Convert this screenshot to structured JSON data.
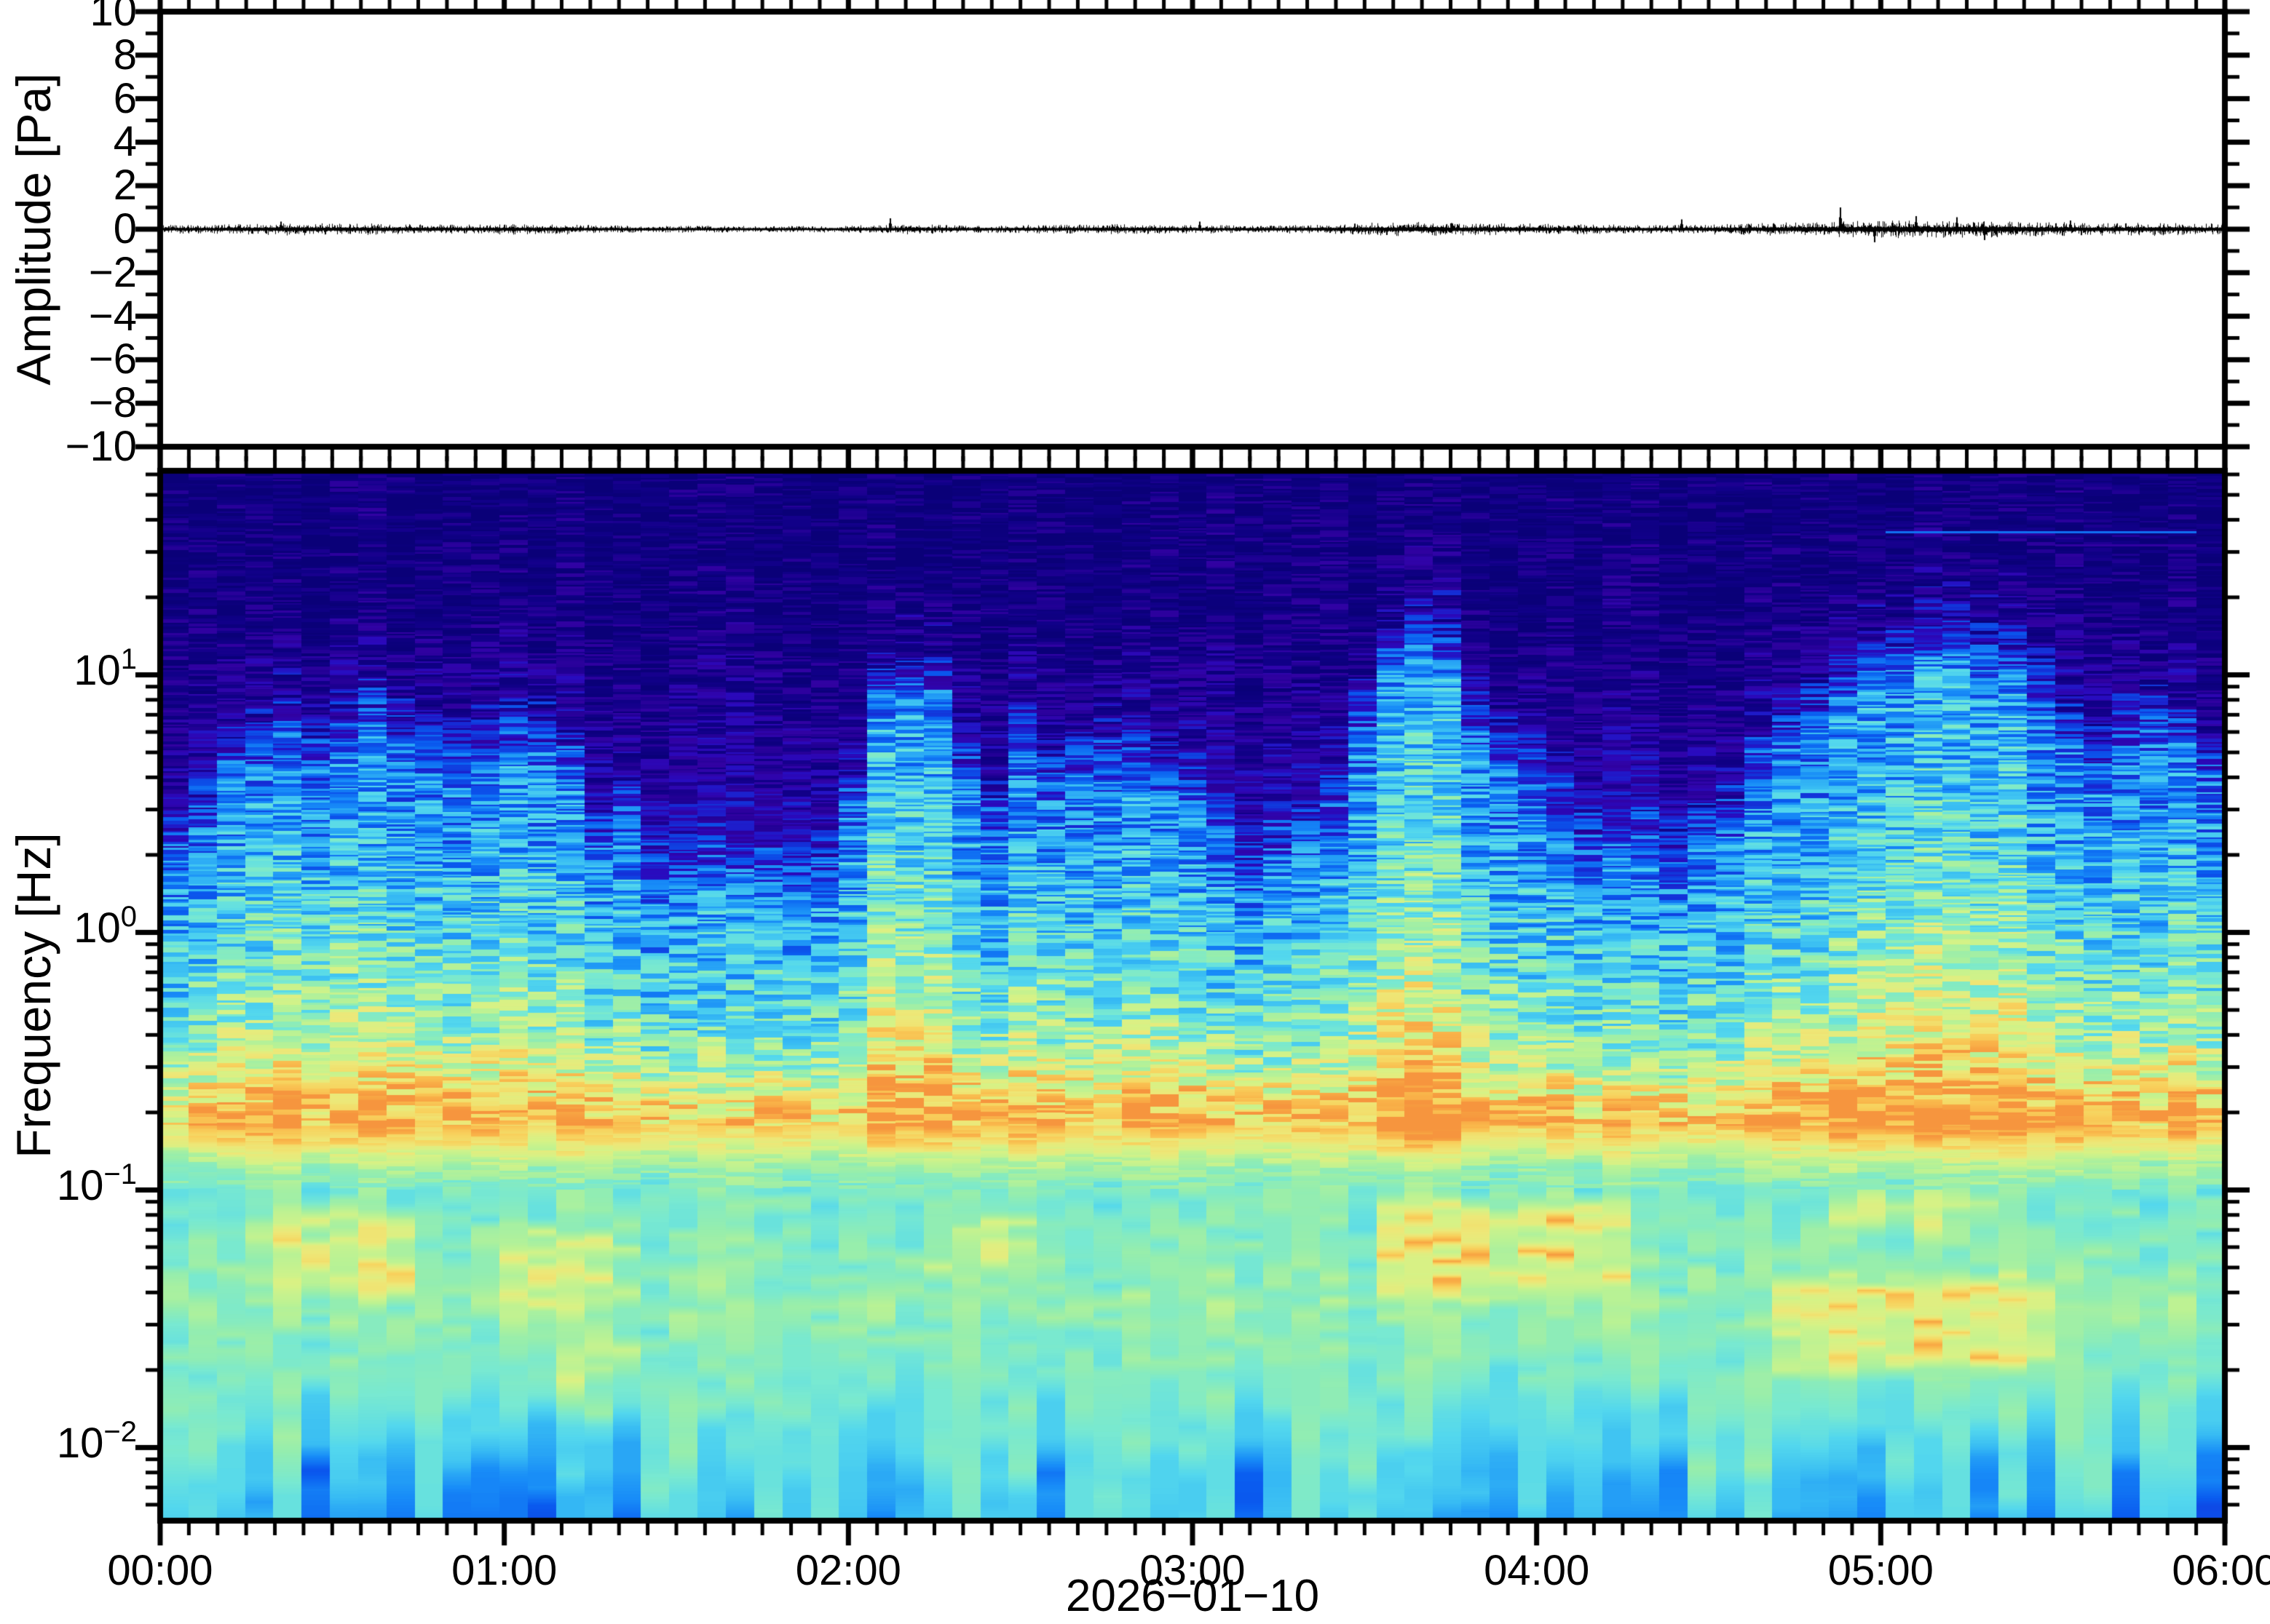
{
  "figure": {
    "background": "#ffffff",
    "frame_color": "#000000"
  },
  "chart_data": [
    {
      "type": "line",
      "name": "infrasound-waveform",
      "ylabel": "Amplitude [Pa]",
      "line_color": "#000000",
      "x_range_hours": [
        0,
        6
      ],
      "ylim": [
        -10,
        10
      ],
      "y_minor_step": 1,
      "x_minor_step_minutes": 5,
      "y_ticks": [
        {
          "v": 10,
          "label": "10"
        },
        {
          "v": 8,
          "label": "8"
        },
        {
          "v": 6,
          "label": "6"
        },
        {
          "v": 4,
          "label": "4"
        },
        {
          "v": 2,
          "label": "2"
        },
        {
          "v": 0,
          "label": "0"
        },
        {
          "v": -2,
          "label": "−2"
        },
        {
          "v": -4,
          "label": "−4"
        },
        {
          "v": -6,
          "label": "−6"
        },
        {
          "v": -8,
          "label": "−8"
        },
        {
          "v": -10,
          "label": "−10"
        }
      ],
      "noise_sigma_pa_per_5min": [
        0.08,
        0.08,
        0.09,
        0.1,
        0.12,
        0.11,
        0.1,
        0.1,
        0.09,
        0.09,
        0.08,
        0.09,
        0.1,
        0.1,
        0.09,
        0.07,
        0.07,
        0.06,
        0.06,
        0.06,
        0.06,
        0.06,
        0.06,
        0.06,
        0.07,
        0.08,
        0.09,
        0.08,
        0.07,
        0.07,
        0.08,
        0.08,
        0.08,
        0.09,
        0.09,
        0.08,
        0.08,
        0.07,
        0.07,
        0.07,
        0.08,
        0.09,
        0.11,
        0.12,
        0.13,
        0.12,
        0.11,
        0.11,
        0.1,
        0.09,
        0.09,
        0.08,
        0.08,
        0.08,
        0.09,
        0.1,
        0.11,
        0.12,
        0.13,
        0.14,
        0.15,
        0.16,
        0.16,
        0.15,
        0.15,
        0.14,
        0.13,
        0.12,
        0.11,
        0.11,
        0.12,
        0.11,
        0.1
      ],
      "spikes": [
        {
          "t_hours": 0.35,
          "amp_pa": 0.35
        },
        {
          "t_hours": 2.12,
          "amp_pa": 0.5
        },
        {
          "t_hours": 3.02,
          "amp_pa": 0.35
        },
        {
          "t_hours": 4.42,
          "amp_pa": 0.45
        },
        {
          "t_hours": 4.88,
          "amp_pa": 1.0
        },
        {
          "t_hours": 4.98,
          "amp_pa": -0.6
        },
        {
          "t_hours": 5.1,
          "amp_pa": 0.6
        },
        {
          "t_hours": 5.22,
          "amp_pa": 0.55
        },
        {
          "t_hours": 5.3,
          "amp_pa": -0.5
        },
        {
          "t_hours": 5.55,
          "amp_pa": 0.4
        }
      ]
    },
    {
      "type": "heatmap",
      "name": "spectrogram",
      "ylabel": "Frequency [Hz]",
      "xlabel": "2026−01−10",
      "x_range_hours": [
        0,
        6
      ],
      "freq_range_hz": [
        0.0052,
        62
      ],
      "time_bin_minutes": 5,
      "grid": "off",
      "x_ticks": [
        {
          "hours": 0,
          "label": "00:00"
        },
        {
          "hours": 1,
          "label": "01:00"
        },
        {
          "hours": 2,
          "label": "02:00"
        },
        {
          "hours": 3,
          "label": "03:00"
        },
        {
          "hours": 4,
          "label": "04:00"
        },
        {
          "hours": 5,
          "label": "05:00"
        },
        {
          "hours": 6,
          "label": "06:00"
        }
      ],
      "freq_ticks": [
        {
          "hz": 10,
          "base": "10",
          "exp": "1"
        },
        {
          "hz": 1,
          "base": "10",
          "exp": "0"
        },
        {
          "hz": 0.1,
          "base": "10",
          "exp": "−1"
        },
        {
          "hz": 0.01,
          "base": "10",
          "exp": "−2"
        }
      ],
      "colormap": [
        [
          0.0,
          "#0A0078"
        ],
        [
          0.08,
          "#12008A"
        ],
        [
          0.15,
          "#3202A2"
        ],
        [
          0.2,
          "#2A0ABE"
        ],
        [
          0.26,
          "#1430D8"
        ],
        [
          0.33,
          "#0A5CF0"
        ],
        [
          0.4,
          "#188CF8"
        ],
        [
          0.47,
          "#38BCF4"
        ],
        [
          0.54,
          "#54D8EE"
        ],
        [
          0.6,
          "#78E9D2"
        ],
        [
          0.66,
          "#96EEAE"
        ],
        [
          0.72,
          "#B8F296"
        ],
        [
          0.78,
          "#D8F286"
        ],
        [
          0.84,
          "#EEE878"
        ],
        [
          0.9,
          "#F8D35E"
        ],
        [
          0.95,
          "#FAB54A"
        ],
        [
          1.0,
          "#F6953E"
        ]
      ],
      "background_level_vs_log10hz": [
        [
          1.7924,
          0.04
        ],
        [
          1.3,
          0.05
        ],
        [
          1.0,
          0.08
        ],
        [
          0.6,
          0.13
        ],
        [
          0.3,
          0.2
        ],
        [
          0.0,
          0.3
        ],
        [
          -0.3,
          0.4
        ],
        [
          -0.55,
          0.52
        ],
        [
          -0.73,
          0.68
        ],
        [
          -0.9,
          0.6
        ],
        [
          -1.2,
          0.63
        ],
        [
          -1.45,
          0.66
        ],
        [
          -1.7,
          0.62
        ],
        [
          -1.95,
          0.56
        ],
        [
          -2.1,
          0.5
        ],
        [
          -2.284,
          0.46
        ]
      ],
      "burst_ceiling_hz_per_5min": [
        4,
        5,
        8,
        9,
        10,
        9,
        10,
        12,
        10,
        9,
        8,
        9,
        10,
        10,
        8,
        4,
        5,
        3,
        2.5,
        3,
        2.5,
        3,
        2.5,
        3,
        6,
        14,
        16,
        15,
        8,
        5,
        9,
        7,
        8,
        9,
        8,
        7,
        6,
        4,
        3,
        3.5,
        4,
        5,
        12,
        20,
        22,
        20,
        12,
        9,
        8,
        5,
        4,
        3.5,
        4,
        3.5,
        4,
        5,
        8,
        10,
        12,
        15,
        18,
        20,
        22,
        22,
        20,
        18,
        15,
        10,
        8,
        10,
        12,
        10,
        8
      ],
      "burst_strength_per_5min": [
        0.5,
        0.6,
        0.75,
        0.8,
        0.85,
        0.8,
        0.85,
        0.8,
        0.8,
        0.75,
        0.7,
        0.75,
        0.8,
        0.8,
        0.7,
        0.55,
        0.6,
        0.45,
        0.4,
        0.45,
        0.45,
        0.5,
        0.45,
        0.5,
        0.65,
        0.9,
        0.95,
        0.9,
        0.7,
        0.6,
        0.75,
        0.7,
        0.7,
        0.75,
        0.75,
        0.7,
        0.65,
        0.5,
        0.45,
        0.5,
        0.55,
        0.6,
        0.85,
        0.95,
        1.0,
        0.95,
        0.8,
        0.75,
        0.7,
        0.6,
        0.55,
        0.5,
        0.5,
        0.5,
        0.55,
        0.6,
        0.7,
        0.75,
        0.8,
        0.85,
        0.9,
        0.95,
        0.95,
        0.95,
        0.9,
        0.9,
        0.85,
        0.75,
        0.7,
        0.75,
        0.8,
        0.8,
        0.75
      ],
      "microbarom_band": {
        "center_hz": 0.186,
        "sigma_decades": 0.12,
        "amp": 0.14
      },
      "hot_patches": [
        {
          "t_hours": [
            0.25,
            0.8
          ],
          "freq_hz": [
            0.035,
            0.09
          ],
          "amp": 0.16
        },
        {
          "t_hours": [
            0.95,
            1.4
          ],
          "freq_hz": [
            0.03,
            0.08
          ],
          "amp": 0.14
        },
        {
          "t_hours": [
            2.2,
            2.6
          ],
          "freq_hz": [
            0.04,
            0.1
          ],
          "amp": 0.1
        },
        {
          "t_hours": [
            3.55,
            4.35
          ],
          "freq_hz": [
            0.035,
            0.1
          ],
          "amp": 0.22
        },
        {
          "t_hours": [
            4.75,
            5.6
          ],
          "freq_hz": [
            0.018,
            0.05
          ],
          "amp": 0.22
        },
        {
          "t_hours": [
            4.9,
            5.45
          ],
          "freq_hz": [
            0.06,
            0.11
          ],
          "amp": 0.12
        },
        {
          "t_hours": [
            1.1,
            1.45
          ],
          "freq_hz": [
            0.012,
            0.03
          ],
          "amp": 0.1
        }
      ],
      "tonal_lines": [
        {
          "freq_hz": 36,
          "t_start_hours": 5.05,
          "t_end_hours": 6.0,
          "level": 0.36
        },
        {
          "freq_hz": 32,
          "t_start_hours": 5.55,
          "t_end_hours": 6.0,
          "level": 0.15
        }
      ],
      "seed": 20260110
    }
  ]
}
